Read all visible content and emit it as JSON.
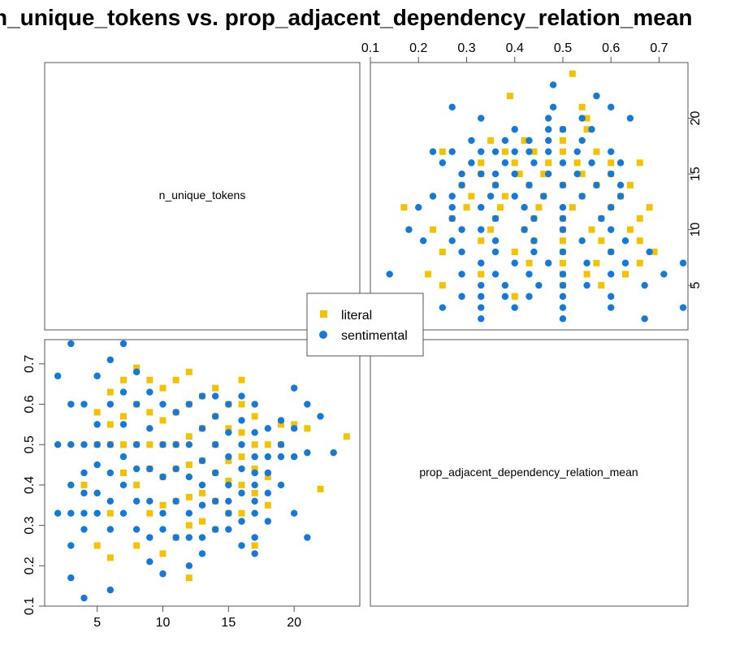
{
  "chart_data": {
    "type": "scatter",
    "title": "n_unique_tokens vs. prop_adjacent_dependency_relation_mean",
    "variables": [
      "n_unique_tokens",
      "prop_adjacent_dependency_relation_mean"
    ],
    "x_range": [
      1,
      25
    ],
    "y_range": [
      0.1,
      0.76
    ],
    "x_ticks": [
      5,
      10,
      15,
      20
    ],
    "y_ticks": [
      0.1,
      0.2,
      0.3,
      0.4,
      0.5,
      0.6,
      0.7
    ],
    "x_tick_labels": [
      "5",
      "10",
      "15",
      "20"
    ],
    "y_tick_labels": [
      "0.1",
      "0.2",
      "0.3",
      "0.4",
      "0.5",
      "0.6",
      "0.7"
    ],
    "legend": {
      "placement": "center",
      "entries": [
        {
          "label": "literal",
          "color": "#F5C200",
          "marker": "square"
        },
        {
          "label": "sentimental",
          "color": "#1479D9",
          "marker": "circle"
        }
      ]
    },
    "series": [
      {
        "name": "literal",
        "color": "#F5C200",
        "marker": "square",
        "points": [
          [
            24,
            0.52
          ],
          [
            22,
            0.39
          ],
          [
            21,
            0.54
          ],
          [
            20,
            0.55
          ],
          [
            19,
            0.5
          ],
          [
            19,
            0.55
          ],
          [
            18,
            0.5
          ],
          [
            18,
            0.42
          ],
          [
            18,
            0.35
          ],
          [
            17,
            0.57
          ],
          [
            17,
            0.5
          ],
          [
            17,
            0.44
          ],
          [
            17,
            0.38
          ],
          [
            17,
            0.25
          ],
          [
            16,
            0.66
          ],
          [
            16,
            0.6
          ],
          [
            16,
            0.53
          ],
          [
            16,
            0.47
          ],
          [
            16,
            0.4
          ],
          [
            16,
            0.33
          ],
          [
            15,
            0.6
          ],
          [
            15,
            0.54
          ],
          [
            15,
            0.46
          ],
          [
            15,
            0.41
          ],
          [
            15,
            0.33
          ],
          [
            14,
            0.64
          ],
          [
            14,
            0.57
          ],
          [
            14,
            0.5
          ],
          [
            14,
            0.43
          ],
          [
            14,
            0.36
          ],
          [
            14,
            0.29
          ],
          [
            13,
            0.62
          ],
          [
            13,
            0.54
          ],
          [
            13,
            0.46
          ],
          [
            13,
            0.38
          ],
          [
            13,
            0.31
          ],
          [
            12,
            0.68
          ],
          [
            12,
            0.6
          ],
          [
            12,
            0.52
          ],
          [
            12,
            0.45
          ],
          [
            12,
            0.37
          ],
          [
            12,
            0.3
          ],
          [
            12,
            0.17
          ],
          [
            11,
            0.66
          ],
          [
            11,
            0.58
          ],
          [
            11,
            0.5
          ],
          [
            11,
            0.44
          ],
          [
            11,
            0.36
          ],
          [
            11,
            0.27
          ],
          [
            10,
            0.64
          ],
          [
            10,
            0.56
          ],
          [
            10,
            0.5
          ],
          [
            10,
            0.42
          ],
          [
            10,
            0.35
          ],
          [
            10,
            0.23
          ],
          [
            9,
            0.66
          ],
          [
            9,
            0.58
          ],
          [
            9,
            0.5
          ],
          [
            9,
            0.44
          ],
          [
            9,
            0.33
          ],
          [
            8,
            0.69
          ],
          [
            8,
            0.6
          ],
          [
            8,
            0.5
          ],
          [
            8,
            0.4
          ],
          [
            8,
            0.25
          ],
          [
            7,
            0.66
          ],
          [
            7,
            0.57
          ],
          [
            7,
            0.5
          ],
          [
            7,
            0.43
          ],
          [
            6,
            0.63
          ],
          [
            6,
            0.55
          ],
          [
            6,
            0.5
          ],
          [
            6,
            0.33
          ],
          [
            6,
            0.22
          ],
          [
            5,
            0.58
          ],
          [
            5,
            0.5
          ],
          [
            5,
            0.25
          ],
          [
            4,
            0.4
          ]
        ]
      },
      {
        "name": "sentimental",
        "color": "#1479D9",
        "marker": "circle",
        "points": [
          [
            23,
            0.48
          ],
          [
            22,
            0.57
          ],
          [
            21,
            0.6
          ],
          [
            21,
            0.48
          ],
          [
            21,
            0.27
          ],
          [
            20,
            0.64
          ],
          [
            20,
            0.54
          ],
          [
            20,
            0.47
          ],
          [
            20,
            0.33
          ],
          [
            19,
            0.56
          ],
          [
            19,
            0.47
          ],
          [
            19,
            0.4
          ],
          [
            19,
            0.5
          ],
          [
            18,
            0.54
          ],
          [
            18,
            0.47
          ],
          [
            18,
            0.43
          ],
          [
            18,
            0.38
          ],
          [
            18,
            0.31
          ],
          [
            17,
            0.6
          ],
          [
            17,
            0.53
          ],
          [
            17,
            0.47
          ],
          [
            17,
            0.43
          ],
          [
            17,
            0.4
          ],
          [
            17,
            0.36
          ],
          [
            17,
            0.33
          ],
          [
            17,
            0.27
          ],
          [
            17,
            0.23
          ],
          [
            16,
            0.62
          ],
          [
            16,
            0.56
          ],
          [
            16,
            0.5
          ],
          [
            16,
            0.44
          ],
          [
            16,
            0.38
          ],
          [
            16,
            0.31
          ],
          [
            16,
            0.25
          ],
          [
            15,
            0.6
          ],
          [
            15,
            0.53
          ],
          [
            15,
            0.47
          ],
          [
            15,
            0.4
          ],
          [
            15,
            0.36
          ],
          [
            15,
            0.33
          ],
          [
            15,
            0.29
          ],
          [
            14,
            0.62
          ],
          [
            14,
            0.57
          ],
          [
            14,
            0.5
          ],
          [
            14,
            0.43
          ],
          [
            14,
            0.36
          ],
          [
            14,
            0.29
          ],
          [
            13,
            0.62
          ],
          [
            13,
            0.54
          ],
          [
            13,
            0.46
          ],
          [
            13,
            0.4
          ],
          [
            13,
            0.35
          ],
          [
            13,
            0.27
          ],
          [
            13,
            0.23
          ],
          [
            12,
            0.6
          ],
          [
            12,
            0.5
          ],
          [
            12,
            0.42
          ],
          [
            12,
            0.33
          ],
          [
            12,
            0.27
          ],
          [
            12,
            0.2
          ],
          [
            11,
            0.58
          ],
          [
            11,
            0.5
          ],
          [
            11,
            0.44
          ],
          [
            11,
            0.36
          ],
          [
            11,
            0.27
          ],
          [
            10,
            0.6
          ],
          [
            10,
            0.5
          ],
          [
            10,
            0.42
          ],
          [
            10,
            0.33
          ],
          [
            10,
            0.29
          ],
          [
            10,
            0.18
          ],
          [
            9,
            0.63
          ],
          [
            9,
            0.54
          ],
          [
            9,
            0.44
          ],
          [
            9,
            0.36
          ],
          [
            9,
            0.27
          ],
          [
            9,
            0.21
          ],
          [
            8,
            0.68
          ],
          [
            8,
            0.6
          ],
          [
            8,
            0.5
          ],
          [
            8,
            0.44
          ],
          [
            8,
            0.36
          ],
          [
            8,
            0.29
          ],
          [
            7,
            0.75
          ],
          [
            7,
            0.63
          ],
          [
            7,
            0.55
          ],
          [
            7,
            0.47
          ],
          [
            7,
            0.4
          ],
          [
            7,
            0.33
          ],
          [
            6,
            0.71
          ],
          [
            6,
            0.6
          ],
          [
            6,
            0.5
          ],
          [
            6,
            0.43
          ],
          [
            6,
            0.36
          ],
          [
            6,
            0.29
          ],
          [
            6,
            0.14
          ],
          [
            5,
            0.67
          ],
          [
            5,
            0.55
          ],
          [
            5,
            0.5
          ],
          [
            5,
            0.45
          ],
          [
            5,
            0.38
          ],
          [
            5,
            0.33
          ],
          [
            4,
            0.6
          ],
          [
            4,
            0.5
          ],
          [
            4,
            0.43
          ],
          [
            4,
            0.38
          ],
          [
            4,
            0.33
          ],
          [
            4,
            0.29
          ],
          [
            4,
            0.12
          ],
          [
            3,
            0.75
          ],
          [
            3,
            0.6
          ],
          [
            3,
            0.5
          ],
          [
            3,
            0.4
          ],
          [
            3,
            0.33
          ],
          [
            3,
            0.25
          ],
          [
            3,
            0.17
          ],
          [
            2,
            0.67
          ],
          [
            2,
            0.5
          ],
          [
            2,
            0.33
          ]
        ]
      }
    ]
  }
}
